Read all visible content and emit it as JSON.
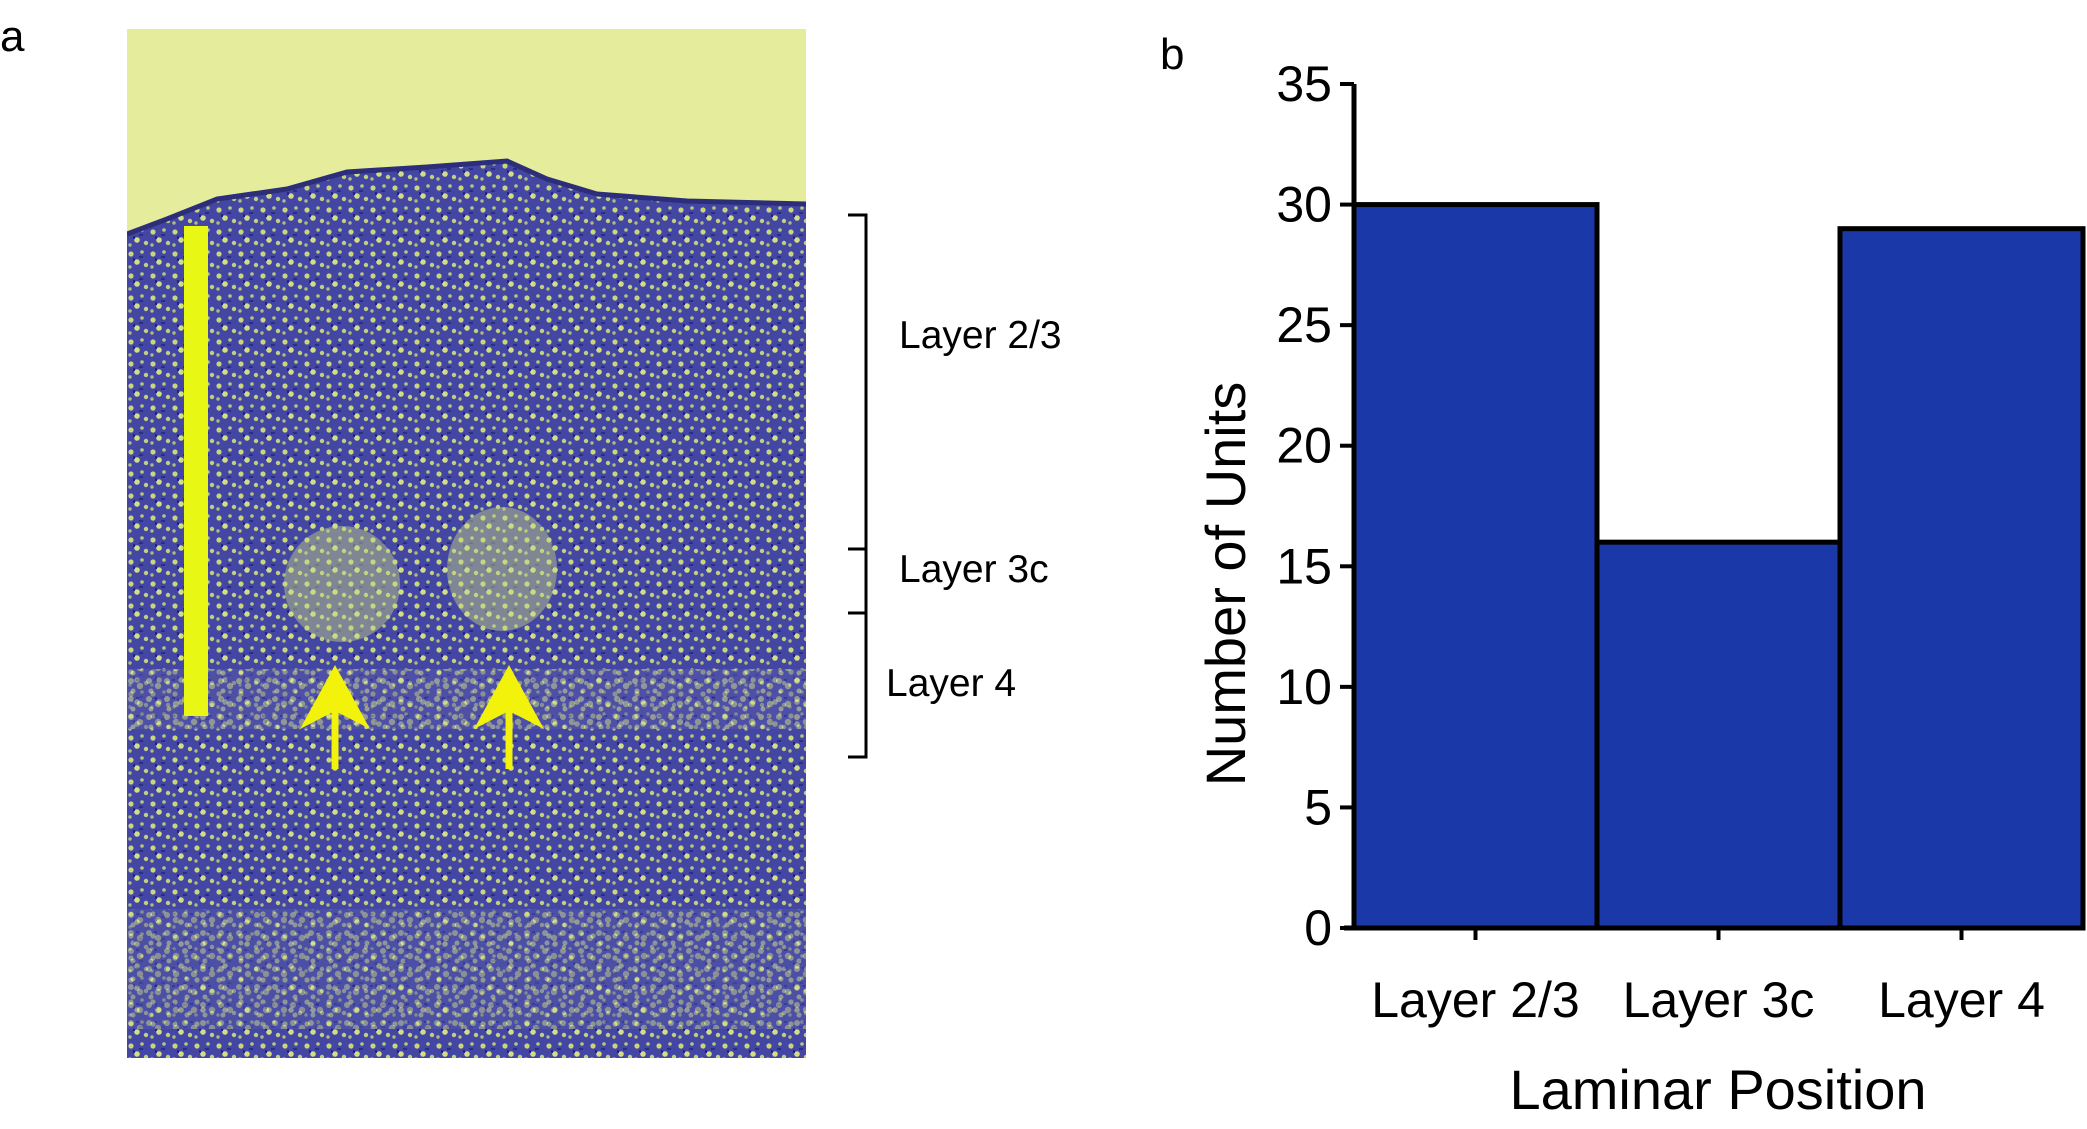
{
  "panels": {
    "left_letter": "a",
    "right_letter": "b"
  },
  "photo": {
    "layer_labels": [
      "Layer 2/3",
      "Layer 3c",
      "Layer 4"
    ],
    "colors": {
      "background": "#e6ee9c",
      "stain": "#3d3ea8",
      "scale_bar": "#e9f714",
      "arrows": "#f2f20a"
    },
    "arrows": [
      "arrow-icon",
      "arrow-icon"
    ]
  },
  "chart_data": {
    "type": "bar",
    "title": "",
    "xlabel": "Laminar Position",
    "ylabel": "Number of Units",
    "categories": [
      "Layer 2/3",
      "Layer 3c",
      "Layer 4"
    ],
    "values": [
      30,
      16,
      29
    ],
    "ylim": [
      0,
      35
    ],
    "yticks": [
      "0",
      "5",
      "10",
      "15",
      "20",
      "25",
      "30",
      "35"
    ],
    "bar_color": "#1a38a8",
    "grid": false
  }
}
